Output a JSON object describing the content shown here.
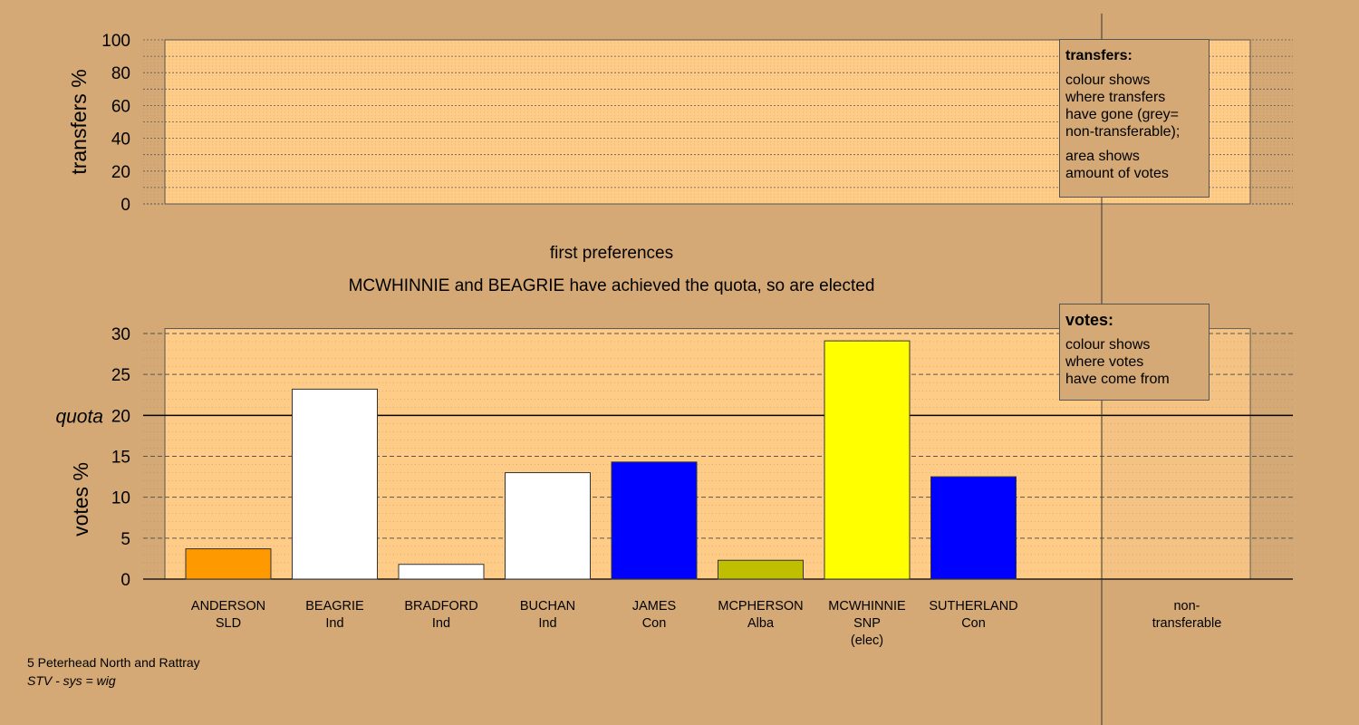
{
  "colors": {
    "background": "#D4A976",
    "panel": "#FFCC88",
    "SLD": "#FF9900",
    "Ind": "#FFFFFF",
    "Con": "#0000FF",
    "Alba": "#BFBF00",
    "SNP": "#FFFF00"
  },
  "headings": {
    "round": "first preferences",
    "status": "MCWHINNIE and BEAGRIE have achieved the quota, so are elected"
  },
  "legends": {
    "transfers": {
      "title": "transfers:",
      "line1": "colour shows",
      "line2": "where transfers",
      "line3": "have gone (grey=",
      "line4": "non-transferable);",
      "line5": "area shows",
      "line6": "amount of votes"
    },
    "votes": {
      "title": "votes:",
      "line1": "colour shows",
      "line2": "where votes",
      "line3": "have come from"
    }
  },
  "footer": {
    "ward": "5 Peterhead North and Rattray",
    "system": "STV - sys = wig"
  },
  "chart_data": [
    {
      "type": "bar",
      "ylabel": "transfers %",
      "ylim": [
        0,
        100
      ],
      "yticks": [
        0,
        20,
        40,
        60,
        80,
        100
      ],
      "grid": true,
      "values": []
    },
    {
      "type": "bar",
      "ylabel": "votes %",
      "ylim": [
        0,
        30
      ],
      "yticks": [
        0,
        5,
        10,
        15,
        20,
        25,
        30
      ],
      "grid": true,
      "quota": {
        "label": "quota",
        "value": 20
      },
      "categories": [
        {
          "name": "ANDERSON",
          "party": "SLD",
          "value": 3.7,
          "color": "#FF9900"
        },
        {
          "name": "BEAGRIE",
          "party": "Ind",
          "value": 23.2,
          "color": "#FFFFFF"
        },
        {
          "name": "BRADFORD",
          "party": "Ind",
          "value": 1.8,
          "color": "#FFFFFF"
        },
        {
          "name": "BUCHAN",
          "party": "Ind",
          "value": 13.0,
          "color": "#FFFFFF"
        },
        {
          "name": "JAMES",
          "party": "Con",
          "value": 14.3,
          "color": "#0000FF"
        },
        {
          "name": "MCPHERSON",
          "party": "Alba",
          "value": 2.3,
          "color": "#BFBF00"
        },
        {
          "name": "MCWHINNIE",
          "party": "SNP",
          "note": "(elec)",
          "value": 29.1,
          "color": "#FFFF00"
        },
        {
          "name": "SUTHERLAND",
          "party": "Con",
          "value": 12.5,
          "color": "#0000FF"
        }
      ],
      "nontransferable": {
        "line1": "non-",
        "line2": "transferable"
      }
    }
  ]
}
